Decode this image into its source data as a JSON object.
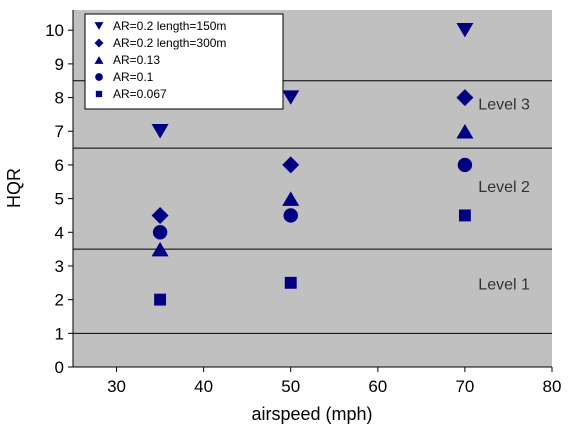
{
  "chart_data": {
    "type": "scatter",
    "xlabel": "airspeed (mph)",
    "ylabel": "HQR",
    "xlim": [
      25,
      80
    ],
    "ylim": [
      0,
      10.6
    ],
    "xticks": [
      30,
      40,
      50,
      60,
      70,
      80
    ],
    "yticks": [
      0,
      1,
      2,
      3,
      4,
      5,
      6,
      7,
      8,
      9,
      10
    ],
    "grid": false,
    "legend_position": "top-left",
    "colors": {
      "plot_background": "#c0c0c0",
      "marker": "#000080",
      "level_line": "#000000"
    },
    "level_boundaries": [
      1,
      3.5,
      6.5,
      8.5
    ],
    "level_labels": [
      {
        "text": "Level 1",
        "x": 74.5,
        "y": 2.3
      },
      {
        "text": "Level 2",
        "x": 74.5,
        "y": 5.2
      },
      {
        "text": "Level 3",
        "x": 74.5,
        "y": 7.65
      }
    ],
    "series": [
      {
        "name": "AR=0.2 length=150m",
        "marker": "triangle-down",
        "x": [
          35,
          50,
          70
        ],
        "y": [
          7,
          8,
          10
        ]
      },
      {
        "name": "AR=0.2 length=300m",
        "marker": "diamond",
        "x": [
          35,
          50,
          70
        ],
        "y": [
          4.5,
          6,
          8
        ]
      },
      {
        "name": "AR=0.13",
        "marker": "triangle-up",
        "x": [
          35,
          50,
          70
        ],
        "y": [
          3.5,
          5,
          7
        ]
      },
      {
        "name": "AR=0.1",
        "marker": "circle",
        "x": [
          35,
          50,
          70
        ],
        "y": [
          4,
          4.5,
          6
        ]
      },
      {
        "name": "AR=0.067",
        "marker": "square",
        "x": [
          35,
          50,
          70
        ],
        "y": [
          2,
          2.5,
          4.5
        ]
      }
    ]
  }
}
